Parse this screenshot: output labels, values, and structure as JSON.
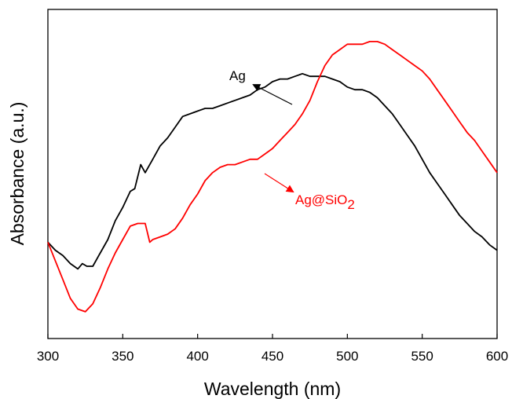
{
  "chart_data": {
    "type": "line",
    "title": "",
    "xlabel": "Wavelength (nm)",
    "ylabel": "Absorbance (a.u.)",
    "xlim": [
      300,
      600
    ],
    "ylim": [
      0,
      1
    ],
    "y_ticks_labeled": false,
    "x_ticks": [
      300,
      350,
      400,
      450,
      500,
      550,
      600
    ],
    "x_tick_labels": [
      "300",
      "350",
      "400",
      "450",
      "500",
      "550",
      "600"
    ],
    "grid": false,
    "legend": "none",
    "series": [
      {
        "name": "Ag",
        "color": "#000000",
        "x": [
          300,
          305,
          310,
          315,
          320,
          323,
          326,
          330,
          335,
          340,
          345,
          350,
          355,
          358,
          362,
          365,
          370,
          375,
          380,
          385,
          390,
          395,
          400,
          405,
          410,
          415,
          420,
          425,
          430,
          435,
          440,
          445,
          450,
          455,
          460,
          465,
          470,
          475,
          480,
          485,
          490,
          495,
          500,
          505,
          510,
          515,
          520,
          525,
          530,
          535,
          540,
          545,
          550,
          555,
          560,
          565,
          570,
          575,
          580,
          585,
          590,
          595,
          600
        ],
        "values": [
          0.29,
          0.26,
          0.24,
          0.21,
          0.19,
          0.21,
          0.2,
          0.2,
          0.25,
          0.3,
          0.37,
          0.42,
          0.48,
          0.49,
          0.58,
          0.55,
          0.6,
          0.65,
          0.68,
          0.72,
          0.76,
          0.77,
          0.78,
          0.79,
          0.79,
          0.8,
          0.81,
          0.82,
          0.83,
          0.84,
          0.86,
          0.87,
          0.89,
          0.9,
          0.9,
          0.91,
          0.92,
          0.91,
          0.91,
          0.91,
          0.9,
          0.89,
          0.87,
          0.86,
          0.86,
          0.85,
          0.83,
          0.8,
          0.77,
          0.73,
          0.69,
          0.65,
          0.6,
          0.55,
          0.51,
          0.47,
          0.43,
          0.39,
          0.36,
          0.33,
          0.31,
          0.28,
          0.26
        ]
      },
      {
        "name": "Ag@SiO2",
        "color": "#ff0000",
        "x": [
          300,
          305,
          310,
          315,
          320,
          325,
          330,
          335,
          340,
          345,
          350,
          355,
          360,
          365,
          368,
          370,
          375,
          380,
          385,
          390,
          395,
          400,
          405,
          410,
          415,
          420,
          425,
          430,
          435,
          440,
          445,
          450,
          455,
          460,
          465,
          470,
          475,
          480,
          485,
          490,
          495,
          500,
          505,
          510,
          515,
          520,
          525,
          530,
          535,
          540,
          545,
          550,
          555,
          560,
          565,
          570,
          575,
          580,
          585,
          590,
          595,
          600
        ],
        "values": [
          0.29,
          0.22,
          0.15,
          0.08,
          0.04,
          0.03,
          0.06,
          0.12,
          0.19,
          0.25,
          0.3,
          0.35,
          0.36,
          0.36,
          0.29,
          0.3,
          0.31,
          0.32,
          0.34,
          0.38,
          0.43,
          0.47,
          0.52,
          0.55,
          0.57,
          0.58,
          0.58,
          0.59,
          0.6,
          0.6,
          0.62,
          0.64,
          0.67,
          0.7,
          0.73,
          0.77,
          0.82,
          0.89,
          0.95,
          0.99,
          1.01,
          1.03,
          1.03,
          1.03,
          1.04,
          1.04,
          1.03,
          1.01,
          0.99,
          0.97,
          0.95,
          0.93,
          0.9,
          0.86,
          0.82,
          0.78,
          0.74,
          0.7,
          0.67,
          0.63,
          0.59,
          0.55
        ]
      }
    ],
    "annotations": {
      "ag_label": "Ag",
      "agsio2_prefix": "Ag@SiO",
      "agsio2_subscript": "2"
    }
  }
}
